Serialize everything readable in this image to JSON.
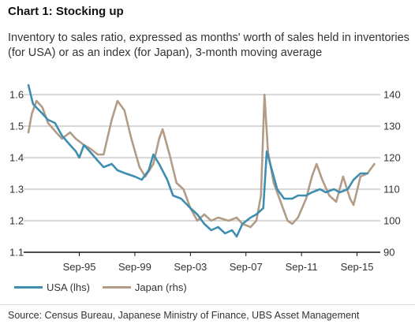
{
  "title": "Chart 1: Stocking up",
  "subtitle": "Inventory to sales ratio, expressed as months' worth of sales held in inventories (for USA) or as an index (for Japan), 3-month moving average",
  "source": "Source: Census Bureau, Japanese Ministry of Finance, UBS Asset Management",
  "chart_data": {
    "type": "line",
    "title": "Chart 1: Stocking up",
    "x_ticks": [
      "Sep-95",
      "Sep-99",
      "Sep-03",
      "Sep-07",
      "Sep-11",
      "Sep-15"
    ],
    "xlim": [
      "1992-01",
      "2017-01"
    ],
    "y_left": {
      "ticks": [
        "1.1",
        "1.2",
        "1.3",
        "1.4",
        "1.5",
        "1.6"
      ],
      "ylim": [
        1.1,
        1.65
      ]
    },
    "y_right": {
      "ticks": [
        "90",
        "100",
        "110",
        "120",
        "130",
        "140"
      ],
      "ylim": [
        90,
        145
      ]
    },
    "grid": "horizontal",
    "legend_position": "bottom-left",
    "series": [
      {
        "name": "USA (lhs)",
        "axis": "left",
        "color": "#3d8eb0",
        "data": [
          [
            "1992-01",
            1.63
          ],
          [
            "1992-05",
            1.57
          ],
          [
            "1993-01",
            1.54
          ],
          [
            "1993-06",
            1.52
          ],
          [
            "1993-12",
            1.51
          ],
          [
            "1994-06",
            1.47
          ],
          [
            "1995-01",
            1.44
          ],
          [
            "1995-06",
            1.42
          ],
          [
            "1995-09",
            1.4
          ],
          [
            "1996-01",
            1.44
          ],
          [
            "1996-06",
            1.42
          ],
          [
            "1997-01",
            1.39
          ],
          [
            "1997-06",
            1.37
          ],
          [
            "1998-01",
            1.38
          ],
          [
            "1998-06",
            1.36
          ],
          [
            "1999-01",
            1.35
          ],
          [
            "1999-09",
            1.34
          ],
          [
            "2000-03",
            1.33
          ],
          [
            "2000-09",
            1.36
          ],
          [
            "2001-01",
            1.41
          ],
          [
            "2001-06",
            1.38
          ],
          [
            "2002-01",
            1.33
          ],
          [
            "2002-06",
            1.28
          ],
          [
            "2003-01",
            1.27
          ],
          [
            "2003-09",
            1.24
          ],
          [
            "2004-03",
            1.22
          ],
          [
            "2004-09",
            1.19
          ],
          [
            "2005-03",
            1.17
          ],
          [
            "2005-09",
            1.18
          ],
          [
            "2006-03",
            1.16
          ],
          [
            "2006-09",
            1.17
          ],
          [
            "2007-01",
            1.15
          ],
          [
            "2007-06",
            1.19
          ],
          [
            "2008-01",
            1.21
          ],
          [
            "2008-06",
            1.22
          ],
          [
            "2008-12",
            1.24
          ],
          [
            "2009-03",
            1.42
          ],
          [
            "2009-06",
            1.38
          ],
          [
            "2009-12",
            1.3
          ],
          [
            "2010-06",
            1.27
          ],
          [
            "2011-01",
            1.27
          ],
          [
            "2011-06",
            1.28
          ],
          [
            "2012-01",
            1.28
          ],
          [
            "2012-06",
            1.29
          ],
          [
            "2013-01",
            1.3
          ],
          [
            "2013-06",
            1.29
          ],
          [
            "2014-01",
            1.3
          ],
          [
            "2014-06",
            1.29
          ],
          [
            "2015-01",
            1.3
          ],
          [
            "2015-06",
            1.33
          ],
          [
            "2015-12",
            1.35
          ],
          [
            "2016-06",
            1.35
          ]
        ]
      },
      {
        "name": "Japan (rhs)",
        "axis": "right",
        "color": "#b39b85",
        "data": [
          [
            "1992-01",
            128
          ],
          [
            "1992-04",
            134
          ],
          [
            "1992-08",
            138
          ],
          [
            "1993-01",
            136
          ],
          [
            "1993-06",
            131
          ],
          [
            "1994-01",
            128
          ],
          [
            "1994-06",
            126
          ],
          [
            "1995-01",
            128
          ],
          [
            "1995-06",
            126
          ],
          [
            "1996-01",
            124
          ],
          [
            "1996-06",
            123
          ],
          [
            "1997-01",
            121
          ],
          [
            "1997-06",
            121
          ],
          [
            "1998-01",
            132
          ],
          [
            "1998-06",
            138
          ],
          [
            "1998-12",
            135
          ],
          [
            "1999-06",
            126
          ],
          [
            "2000-01",
            117
          ],
          [
            "2000-06",
            114
          ],
          [
            "2001-01",
            118
          ],
          [
            "2001-06",
            126
          ],
          [
            "2001-09",
            129
          ],
          [
            "2002-03",
            121
          ],
          [
            "2002-09",
            112
          ],
          [
            "2003-03",
            110
          ],
          [
            "2003-09",
            104
          ],
          [
            "2004-03",
            100
          ],
          [
            "2004-09",
            102
          ],
          [
            "2005-03",
            100
          ],
          [
            "2005-09",
            101
          ],
          [
            "2006-06",
            100
          ],
          [
            "2007-01",
            101
          ],
          [
            "2007-06",
            99
          ],
          [
            "2008-01",
            98
          ],
          [
            "2008-06",
            100
          ],
          [
            "2008-10",
            108
          ],
          [
            "2009-01",
            140
          ],
          [
            "2009-04",
            122
          ],
          [
            "2009-09",
            112
          ],
          [
            "2010-03",
            106
          ],
          [
            "2010-09",
            100
          ],
          [
            "2011-01",
            99
          ],
          [
            "2011-06",
            101
          ],
          [
            "2012-01",
            107
          ],
          [
            "2012-06",
            114
          ],
          [
            "2012-10",
            118
          ],
          [
            "2013-03",
            113
          ],
          [
            "2013-09",
            108
          ],
          [
            "2014-03",
            106
          ],
          [
            "2014-09",
            114
          ],
          [
            "2015-03",
            107
          ],
          [
            "2015-06",
            105
          ],
          [
            "2015-12",
            114
          ],
          [
            "2016-06",
            115
          ],
          [
            "2016-12",
            118
          ]
        ]
      }
    ]
  }
}
